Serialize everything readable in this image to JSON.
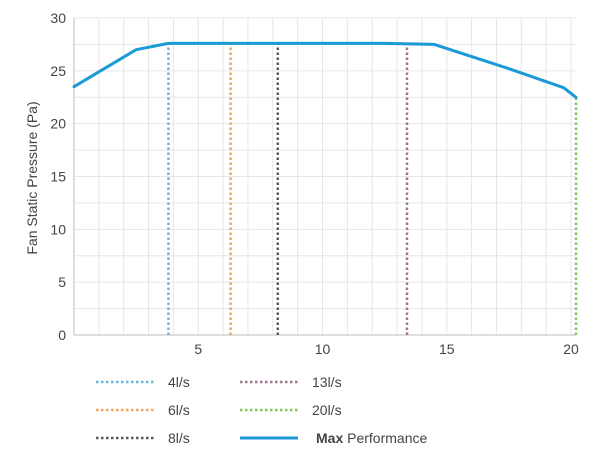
{
  "chart_data": {
    "type": "line",
    "ylabel": "Fan Static Pressure (Pa)",
    "xlabel": "",
    "title": "",
    "xlim": [
      0,
      20.2
    ],
    "ylim": [
      0,
      30
    ],
    "x_ticks": [
      5,
      10,
      15,
      20
    ],
    "y_ticks": [
      0,
      5,
      10,
      15,
      20,
      25,
      30
    ],
    "grid": true,
    "max_curve": {
      "name_bold": "Max",
      "name_rest": " Performance",
      "color": "#1a9ad6",
      "points": [
        [
          0,
          23.5
        ],
        [
          2.5,
          27.0
        ],
        [
          3.8,
          27.6
        ],
        [
          8,
          27.6
        ],
        [
          12.5,
          27.6
        ],
        [
          14.5,
          27.5
        ],
        [
          17.5,
          25.2
        ],
        [
          19.7,
          23.4
        ],
        [
          20.2,
          22.5
        ]
      ]
    },
    "series": [
      {
        "name": "4l/s",
        "x": 3.8,
        "y_top": 27.6,
        "color": "#6bb5e0"
      },
      {
        "name": "6l/s",
        "x": 6.3,
        "y_top": 27.6,
        "color": "#f4a35a"
      },
      {
        "name": "8l/s",
        "x": 8.2,
        "y_top": 27.6,
        "color": "#555a60"
      },
      {
        "name": "13l/s",
        "x": 13.4,
        "y_top": 27.5,
        "color": "#a0758f"
      },
      {
        "name": "20l/s",
        "x": 20.2,
        "y_top": 22.5,
        "color": "#7cc95a"
      }
    ]
  }
}
